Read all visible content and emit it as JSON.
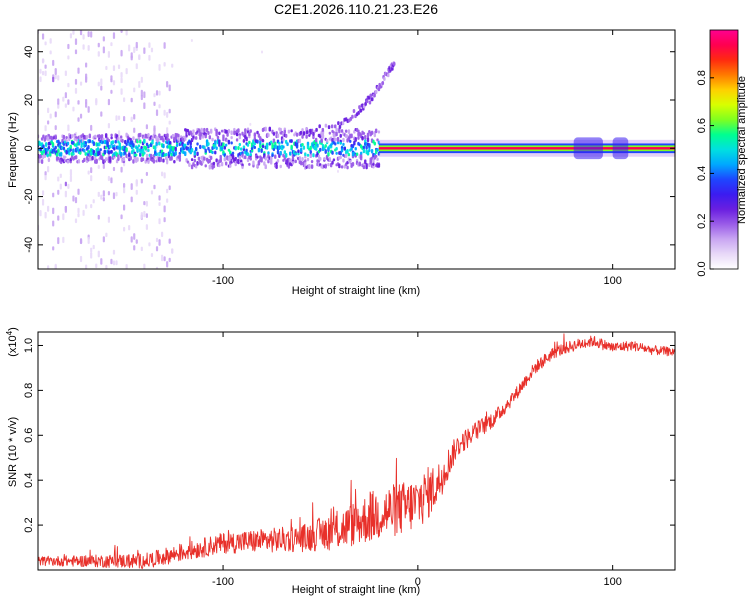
{
  "title": "C2E1.2026.110.21.23.E26",
  "colors": {
    "snr_line": "#e8302a",
    "colormap": [
      "#ffffff",
      "#e8d9f8",
      "#c9a6f2",
      "#9a5ce8",
      "#6a1fe0",
      "#3b1cf0",
      "#1e46ff",
      "#00a8ff",
      "#00e0e0",
      "#00ff90",
      "#80ff20",
      "#d8ff00",
      "#ffd000",
      "#ff7a00",
      "#ff2a10",
      "#ff0050",
      "#ff0090"
    ]
  },
  "chart_data": [
    {
      "id": "spectrogram",
      "type": "heatmap",
      "xlabel": "Height of straight line (km)",
      "ylabel": "Frequency (Hz)",
      "xlim": [
        -195,
        132
      ],
      "ylim": [
        -50,
        49
      ],
      "xticks": [
        -100,
        0,
        100
      ],
      "xtick_labels": [
        "-100",
        "",
        "100"
      ],
      "yticks": [
        -40,
        -20,
        0,
        20,
        40
      ],
      "ytick_labels": [
        "-40",
        "-20",
        "0",
        "20",
        "40"
      ],
      "colorbar": {
        "label": "Normalized spectral amplitude",
        "range": [
          0,
          1
        ],
        "ticks": [
          0.0,
          0.2,
          0.4,
          0.6,
          0.8
        ],
        "tick_labels": [
          "0.0",
          "0.2",
          "0.4",
          "0.6",
          "0.8"
        ]
      },
      "features": {
        "noise_region_x": [
          -195,
          -125
        ],
        "noise_freq_range": [
          -50,
          49
        ],
        "main_band_center_hz": 0,
        "scatter_band_x": [
          -195,
          -20
        ],
        "scatter_band_halfwidth_hz": 8,
        "chirp_points": [
          [
            -60,
            6
          ],
          [
            -40,
            10
          ],
          [
            -30,
            16
          ],
          [
            -25,
            20
          ],
          [
            -20,
            25
          ],
          [
            -15,
            32
          ],
          [
            -12,
            35
          ]
        ],
        "steady_line_x": [
          -20,
          132
        ],
        "steady_line_halfwidth_hz": 2
      }
    },
    {
      "id": "snr",
      "type": "line",
      "xlabel": "Height of straight line (km)",
      "ylabel": "SNR (10 * v/v)",
      "multiplier_label": "(x10",
      "multiplier_exp": "4",
      "multiplier_close": ")",
      "xlim": [
        -195,
        132
      ],
      "ylim": [
        0,
        1.06
      ],
      "xticks": [
        -100,
        0,
        100
      ],
      "xtick_labels": [
        "-100",
        "0",
        "100"
      ],
      "yticks": [
        0.2,
        0.4,
        0.6,
        0.8,
        1.0
      ],
      "ytick_labels": [
        "0.2",
        "0.4",
        "0.6",
        "0.8",
        "1.0"
      ],
      "series": [
        {
          "name": "SNR",
          "trend": [
            [
              -195,
              0.04
            ],
            [
              -140,
              0.04
            ],
            [
              -120,
              0.08
            ],
            [
              -100,
              0.12
            ],
            [
              -60,
              0.14
            ],
            [
              -40,
              0.18
            ],
            [
              -20,
              0.25
            ],
            [
              -5,
              0.28
            ],
            [
              0,
              0.3
            ],
            [
              10,
              0.38
            ],
            [
              20,
              0.55
            ],
            [
              30,
              0.62
            ],
            [
              40,
              0.68
            ],
            [
              50,
              0.78
            ],
            [
              60,
              0.9
            ],
            [
              70,
              0.97
            ],
            [
              80,
              1.0
            ],
            [
              90,
              1.02
            ],
            [
              100,
              0.99
            ],
            [
              110,
              1.0
            ],
            [
              120,
              0.98
            ],
            [
              132,
              0.97
            ]
          ],
          "noise_amplitude": [
            [
              -195,
              0.02
            ],
            [
              -120,
              0.04
            ],
            [
              -60,
              0.06
            ],
            [
              -20,
              0.12
            ],
            [
              5,
              0.12
            ],
            [
              20,
              0.05
            ],
            [
              50,
              0.03
            ],
            [
              132,
              0.02
            ]
          ]
        }
      ]
    }
  ]
}
